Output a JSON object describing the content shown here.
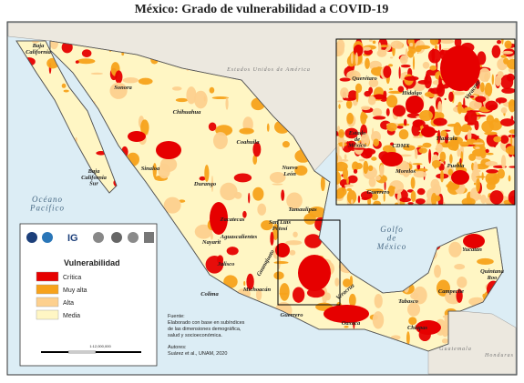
{
  "title": "México: Grado de vulnerabilidad a COVID-19",
  "map": {
    "states": [
      {
        "lines": [
          "Baja",
          "California"
        ]
      },
      {
        "lines": [
          "Sonora"
        ]
      },
      {
        "lines": [
          "Chihuahua"
        ]
      },
      {
        "lines": [
          "Coahuila"
        ]
      },
      {
        "lines": [
          "Sinaloa"
        ]
      },
      {
        "lines": [
          "Baja",
          "California",
          "Sur"
        ]
      },
      {
        "lines": [
          "Durango"
        ]
      },
      {
        "lines": [
          "Nuevo",
          "León"
        ]
      },
      {
        "lines": [
          "Tamaulipas"
        ]
      },
      {
        "lines": [
          "Zacatecas"
        ]
      },
      {
        "lines": [
          "San Luis",
          "Potosí"
        ]
      },
      {
        "lines": [
          "Nayarit"
        ]
      },
      {
        "lines": [
          "Aguascalientes"
        ]
      },
      {
        "lines": [
          "Jalisco"
        ]
      },
      {
        "lines": [
          "Guanajuato"
        ]
      },
      {
        "lines": [
          "Colima"
        ]
      },
      {
        "lines": [
          "Michoacán"
        ]
      },
      {
        "lines": [
          "Guerrero"
        ]
      },
      {
        "lines": [
          "Oaxaca"
        ]
      },
      {
        "lines": [
          "Veracruz"
        ]
      },
      {
        "lines": [
          "Tabasco"
        ]
      },
      {
        "lines": [
          "Chiapas"
        ]
      },
      {
        "lines": [
          "Campeche"
        ]
      },
      {
        "lines": [
          "Yucatán"
        ]
      },
      {
        "lines": [
          "Quintana",
          "Roo"
        ]
      }
    ],
    "water": [
      {
        "lines": [
          "Océano",
          "Pacífico"
        ]
      },
      {
        "lines": [
          "Golfo",
          "de",
          "México"
        ]
      }
    ],
    "countries": [
      {
        "lines": [
          "Estados Unidos de América"
        ]
      },
      {
        "lines": [
          "Guatemala"
        ]
      },
      {
        "lines": [
          "Honduras"
        ]
      }
    ]
  },
  "inset": {
    "labels": [
      {
        "lines": [
          "Querétaro"
        ]
      },
      {
        "lines": [
          "Hidalgo"
        ]
      },
      {
        "lines": [
          "Veracruz"
        ]
      },
      {
        "lines": [
          "Estado",
          "de",
          "México"
        ]
      },
      {
        "lines": [
          "CDMX"
        ]
      },
      {
        "lines": [
          "Tlaxcala"
        ]
      },
      {
        "lines": [
          "Morelos"
        ]
      },
      {
        "lines": [
          "Puebla"
        ]
      },
      {
        "lines": [
          "Guerrero"
        ]
      }
    ]
  },
  "legend": {
    "title": "Vulnerabilidad",
    "items": [
      {
        "label": "Crítica",
        "color": "#e60000"
      },
      {
        "label": "Muy alta",
        "color": "#f7a21b"
      },
      {
        "label": "Alta",
        "color": "#fdd08e"
      },
      {
        "label": "Media",
        "color": "#fff6c4"
      }
    ]
  },
  "source": {
    "lines": [
      "Fuente:",
      "Elaborado con base en subíndices",
      "de las dimensiones demográfica,",
      "salud y socioeconómica."
    ]
  },
  "authors": {
    "lines": [
      "Autores:",
      "Suárez et al., UNAM, 2020"
    ]
  },
  "scale": "1:12,000,000",
  "logo_text": "IG"
}
